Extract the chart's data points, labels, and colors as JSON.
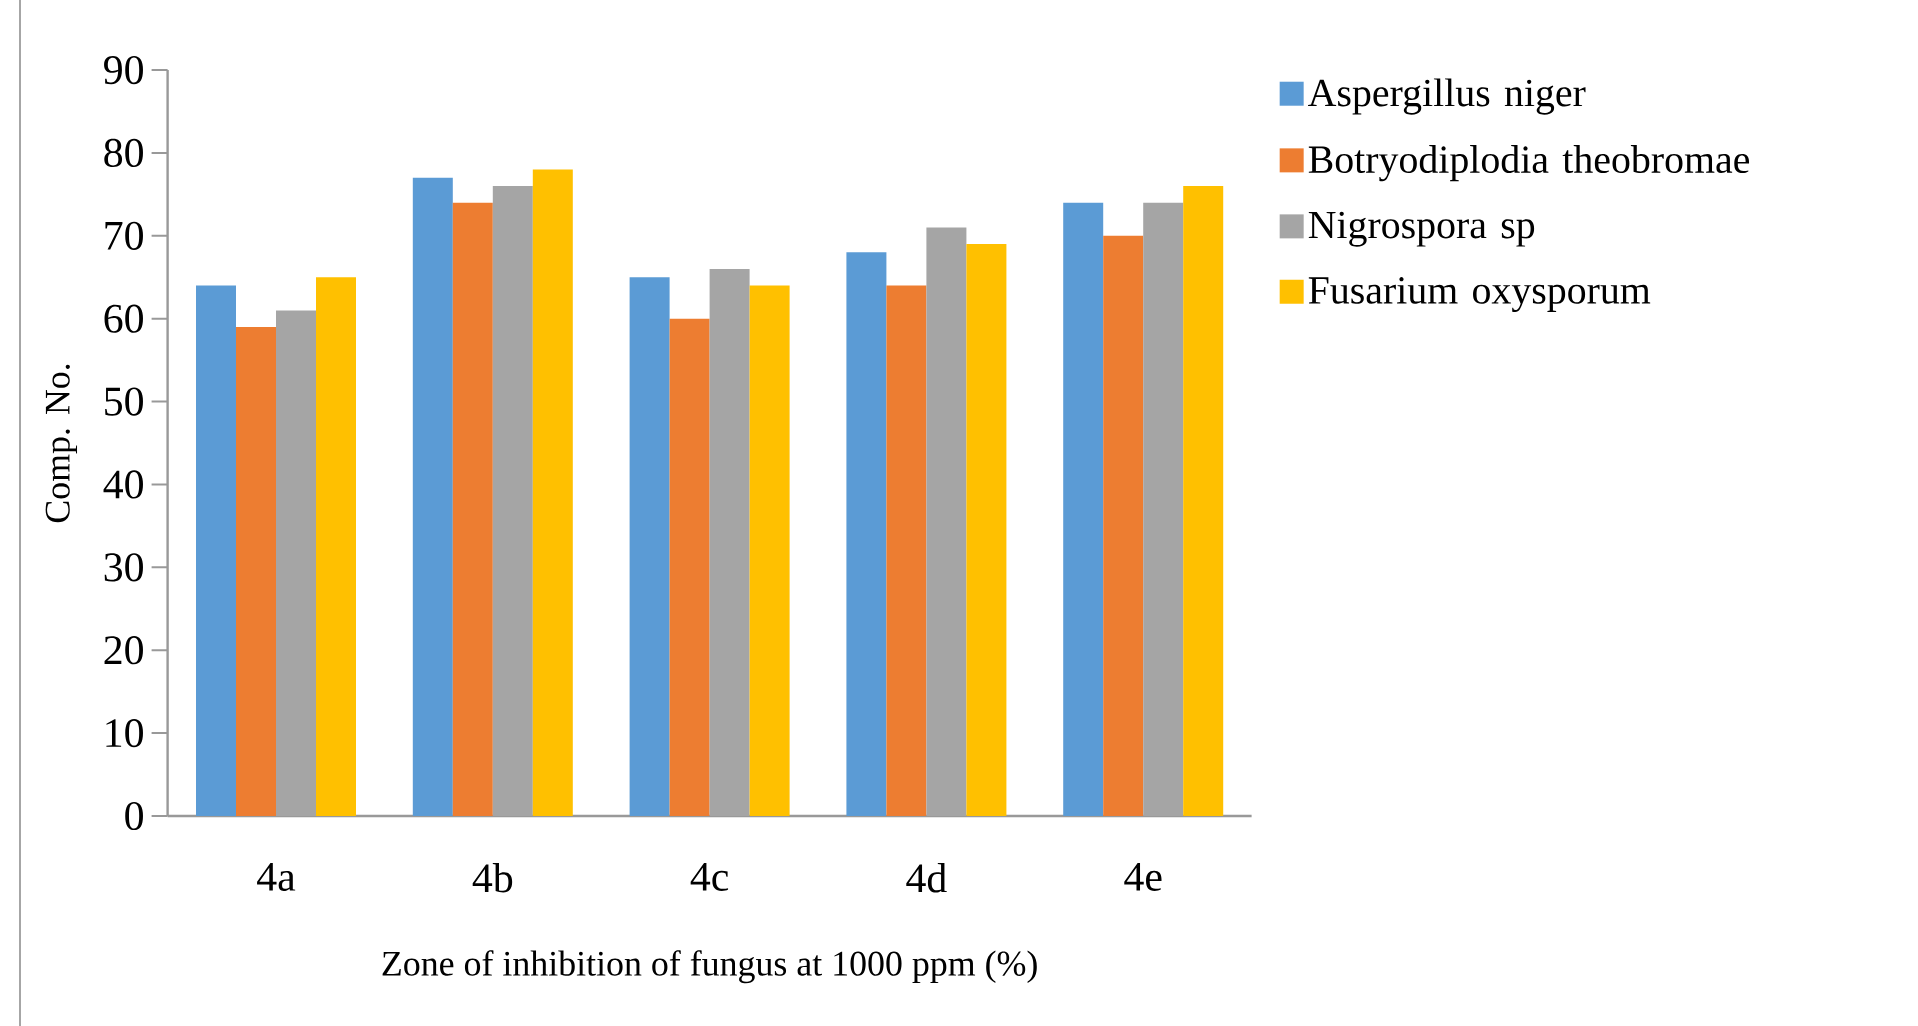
{
  "chart_data": {
    "type": "bar",
    "xlabel": "Zone of inhibition of fungus at 1000 ppm (%)",
    "ylabel": "Comp. No.",
    "categories": [
      "4a",
      "4b",
      "4c",
      "4d",
      "4e"
    ],
    "series": [
      {
        "name": "Aspergillus niger",
        "color": "#5b9bd5",
        "values": [
          64,
          77,
          65,
          68,
          74
        ]
      },
      {
        "name": "Botryodiplodia theobromae",
        "color": "#ed7d31",
        "values": [
          59,
          74,
          60,
          64,
          70
        ]
      },
      {
        "name": "Nigrospora sp",
        "color": "#a5a5a5",
        "values": [
          61,
          76,
          66,
          71,
          74
        ]
      },
      {
        "name": "Fusarium oxysporum",
        "color": "#ffc000",
        "values": [
          65,
          78,
          64,
          69,
          76
        ]
      }
    ],
    "ylim": [
      0,
      90
    ],
    "yticks": [
      0,
      10,
      20,
      30,
      40,
      50,
      60,
      70,
      80,
      90
    ],
    "grid": false,
    "legend": "right"
  }
}
